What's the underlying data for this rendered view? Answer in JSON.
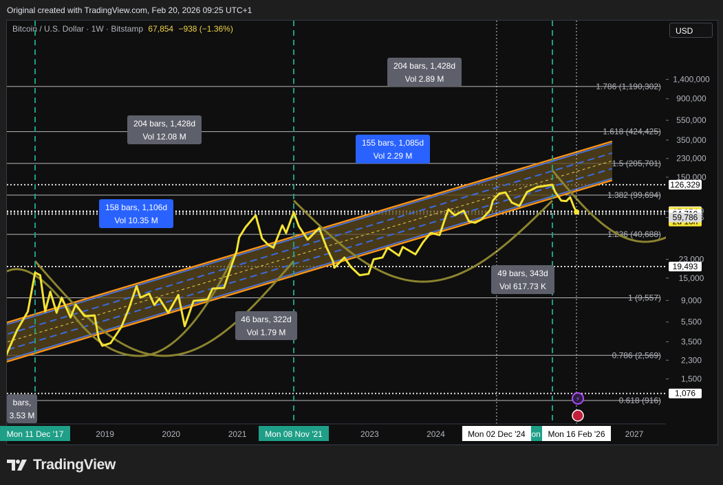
{
  "header": {
    "origin_text": "Original created with TradingView.com, Feb 20, 2026 09:25 UTC+1"
  },
  "legend": {
    "symbol": "Bitcoin / U.S. Dollar · 1W · Bitstamp",
    "last_price": "67,854",
    "change": "−938 (−1.36%)"
  },
  "currency_button": "USD",
  "footer": {
    "brand": "TradingView",
    "logo_icon": "tradingview-logo-icon"
  },
  "colors": {
    "price_line": "#f5e433",
    "channel_edge": "#f7931a",
    "channel_fill": "#5c4a1e",
    "channel_mid": "#3b6ae0",
    "cycle_arc": "#8c8430",
    "cycle_marker": "#1f9f87",
    "measure_blue": "#2962ff",
    "measure_gray": "#5d606b"
  },
  "chart_data": {
    "type": "line",
    "scale": "log",
    "series": [
      {
        "name": "Bitcoin / U.S. Dollar",
        "points": [
          [
            "2016-10-01",
            620
          ],
          [
            "2016-12-15",
            900
          ],
          [
            "2017-03-01",
            1150
          ],
          [
            "2017-05-15",
            1900
          ],
          [
            "2017-07-01",
            2500
          ],
          [
            "2017-09-01",
            4500
          ],
          [
            "2017-11-01",
            7000
          ],
          [
            "2017-12-11",
            17000
          ],
          [
            "2018-01-08",
            16000
          ],
          [
            "2018-02-05",
            7000
          ],
          [
            "2018-03-05",
            11000
          ],
          [
            "2018-04-09",
            6800
          ],
          [
            "2018-05-07",
            9600
          ],
          [
            "2018-06-25",
            6100
          ],
          [
            "2018-07-23",
            8200
          ],
          [
            "2018-09-10",
            6300
          ],
          [
            "2018-11-05",
            6400
          ],
          [
            "2018-11-26",
            3800
          ],
          [
            "2018-12-17",
            3200
          ],
          [
            "2019-02-01",
            3400
          ],
          [
            "2019-04-01",
            4900
          ],
          [
            "2019-05-13",
            7500
          ],
          [
            "2019-06-24",
            12500
          ],
          [
            "2019-07-15",
            9600
          ],
          [
            "2019-09-02",
            10500
          ],
          [
            "2019-09-30",
            8100
          ],
          [
            "2019-10-28",
            9400
          ],
          [
            "2019-12-16",
            6800
          ],
          [
            "2020-02-10",
            10200
          ],
          [
            "2020-03-16",
            5000
          ],
          [
            "2020-05-04",
            8900
          ],
          [
            "2020-07-20",
            9200
          ],
          [
            "2020-08-17",
            11800
          ],
          [
            "2020-10-19",
            12000
          ],
          [
            "2020-11-23",
            18500
          ],
          [
            "2020-12-28",
            28000
          ],
          [
            "2021-01-11",
            38000
          ],
          [
            "2021-02-15",
            48000
          ],
          [
            "2021-04-12",
            63000
          ],
          [
            "2021-05-17",
            37000
          ],
          [
            "2021-06-21",
            32000
          ],
          [
            "2021-07-19",
            30000
          ],
          [
            "2021-09-06",
            50000
          ],
          [
            "2021-09-27",
            42000
          ],
          [
            "2021-11-08",
            67500
          ],
          [
            "2021-12-06",
            49000
          ],
          [
            "2022-01-24",
            36000
          ],
          [
            "2022-03-28",
            47000
          ],
          [
            "2022-05-09",
            30000
          ],
          [
            "2022-06-13",
            22000
          ],
          [
            "2022-06-20",
            19000
          ],
          [
            "2022-08-15",
            24000
          ],
          [
            "2022-09-19",
            19400
          ],
          [
            "2022-11-07",
            16000
          ],
          [
            "2022-12-26",
            16500
          ],
          [
            "2023-01-23",
            23000
          ],
          [
            "2023-03-13",
            24000
          ],
          [
            "2023-04-10",
            30000
          ],
          [
            "2023-06-12",
            25000
          ],
          [
            "2023-07-03",
            30500
          ],
          [
            "2023-09-11",
            25800
          ],
          [
            "2023-10-23",
            34000
          ],
          [
            "2023-12-04",
            42000
          ],
          [
            "2024-01-22",
            40000
          ],
          [
            "2024-02-26",
            62000
          ],
          [
            "2024-03-11",
            72000
          ],
          [
            "2024-04-15",
            63000
          ],
          [
            "2024-06-03",
            70000
          ],
          [
            "2024-07-01",
            55000
          ],
          [
            "2024-08-05",
            53000
          ],
          [
            "2024-09-09",
            57000
          ],
          [
            "2024-10-28",
            71000
          ],
          [
            "2024-11-11",
            88000
          ],
          [
            "2024-12-16",
            103000
          ],
          [
            "2025-01-20",
            106000
          ],
          [
            "2025-02-24",
            84000
          ],
          [
            "2025-04-07",
            78000
          ],
          [
            "2025-05-19",
            107000
          ],
          [
            "2025-07-14",
            120000
          ],
          [
            "2025-08-11",
            122000
          ],
          [
            "2025-10-06",
            126329
          ],
          [
            "2025-10-20",
            108000
          ],
          [
            "2025-11-24",
            88000
          ],
          [
            "2025-12-22",
            87000
          ],
          [
            "2026-01-12",
            95000
          ],
          [
            "2026-02-02",
            76000
          ],
          [
            "2026-02-16",
            67854
          ]
        ]
      }
    ],
    "y_ticks": [
      "1,400,000",
      "900,000",
      "550,000",
      "350,000",
      "230,000",
      "150,000",
      "68,949",
      "59,786",
      "23,000",
      "15,000",
      "9,000",
      "5,500",
      "3,500",
      "2,300",
      "1,500"
    ],
    "x_ticks": [
      "2019",
      "2020",
      "2021",
      "2022",
      "2023",
      "2024",
      "2027"
    ],
    "price_labels": [
      {
        "value": 126329,
        "text": "126,329"
      },
      {
        "value": 68949,
        "text": "68,949"
      },
      {
        "value": 67854,
        "text": "67,854",
        "sub": "2d 16h",
        "highlight": true
      },
      {
        "value": 64710,
        "text": "64,710"
      },
      {
        "value": 59786,
        "text": "59,786",
        "gray": true
      },
      {
        "value": 19493,
        "text": "19,493"
      },
      {
        "value": 1076,
        "text": "1,076"
      }
    ],
    "fib_levels": [
      {
        "value": 1190302,
        "label": "1.786 (1,190,302)"
      },
      {
        "value": 424425,
        "label": "1.618 (424,425)"
      },
      {
        "value": 205701,
        "label": "1.5 (205,701)"
      },
      {
        "value": 99694,
        "label": "1.382 (99,694)"
      },
      {
        "value": 40688,
        "label": "1.236 (40,688)"
      },
      {
        "value": 9557,
        "label": "1 (9,557)"
      },
      {
        "value": 2569,
        "label": "0.786 (2,569)"
      },
      {
        "value": 916,
        "label": "0.618 (916)"
      }
    ],
    "channel": {
      "start": "2016-06-01",
      "end": "2026-09-01",
      "upper": [
        3300,
        340000
      ],
      "lower": [
        1350,
        140000
      ]
    },
    "cycle_markers": [
      {
        "date": "2017-12-11",
        "label": "Mon 11 Dec '17"
      },
      {
        "date": "2021-11-08",
        "label": "Mon 08 Nov '21"
      },
      {
        "date": "2025-10-06",
        "label": "Mon 06 Oct '25"
      }
    ],
    "time_labels": [
      {
        "date": "2024-12-02",
        "label": "Mon 02 Dec '24"
      },
      {
        "date": "2026-02-16",
        "label": "Mon 16 Feb '26"
      }
    ],
    "measurements": [
      {
        "line1": "204 bars, 1,428d",
        "line2": "Vol 12.08 M",
        "style": "gray"
      },
      {
        "line1": "158 bars, 1,106d",
        "line2": "Vol 10.35 M",
        "style": "blue"
      },
      {
        "line1": "155 bars, 1,085d",
        "line2": "Vol 2.29 M",
        "style": "blue"
      },
      {
        "line1": "204 bars, 1,428d",
        "line2": "Vol 2.89 M",
        "style": "gray"
      },
      {
        "line1": "46 bars, 322d",
        "line2": "Vol 1.79 M",
        "style": "gray"
      },
      {
        "line1": "49 bars, 343d",
        "line2": "Vol 617.73 K",
        "style": "gray"
      },
      {
        "line1": "bars,",
        "line2": "3.53 M",
        "style": "gray"
      }
    ]
  }
}
